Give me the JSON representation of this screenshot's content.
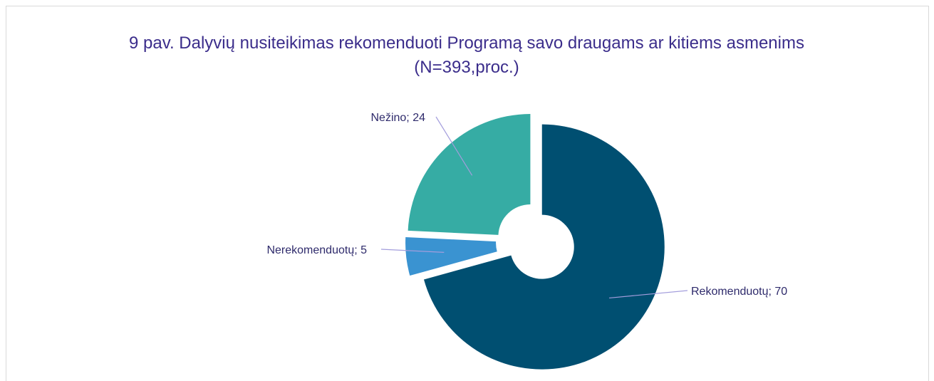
{
  "chart_data": {
    "type": "donut",
    "title": "9 pav. Dalyvių nusiteikimas rekomenduoti Programą savo draugams ar kitiems asmenims (N=393,proc.)",
    "categories": [
      "Rekomenduotų",
      "Nerekomenduotų",
      "Nežino"
    ],
    "values": [
      70,
      5,
      24
    ],
    "value_labels": [
      "Rekomenduotų; 70",
      "Nerekomenduotų; 5",
      "Nežino; 24"
    ],
    "colors": [
      "#004f71",
      "#3a93d1",
      "#36aca4"
    ]
  }
}
